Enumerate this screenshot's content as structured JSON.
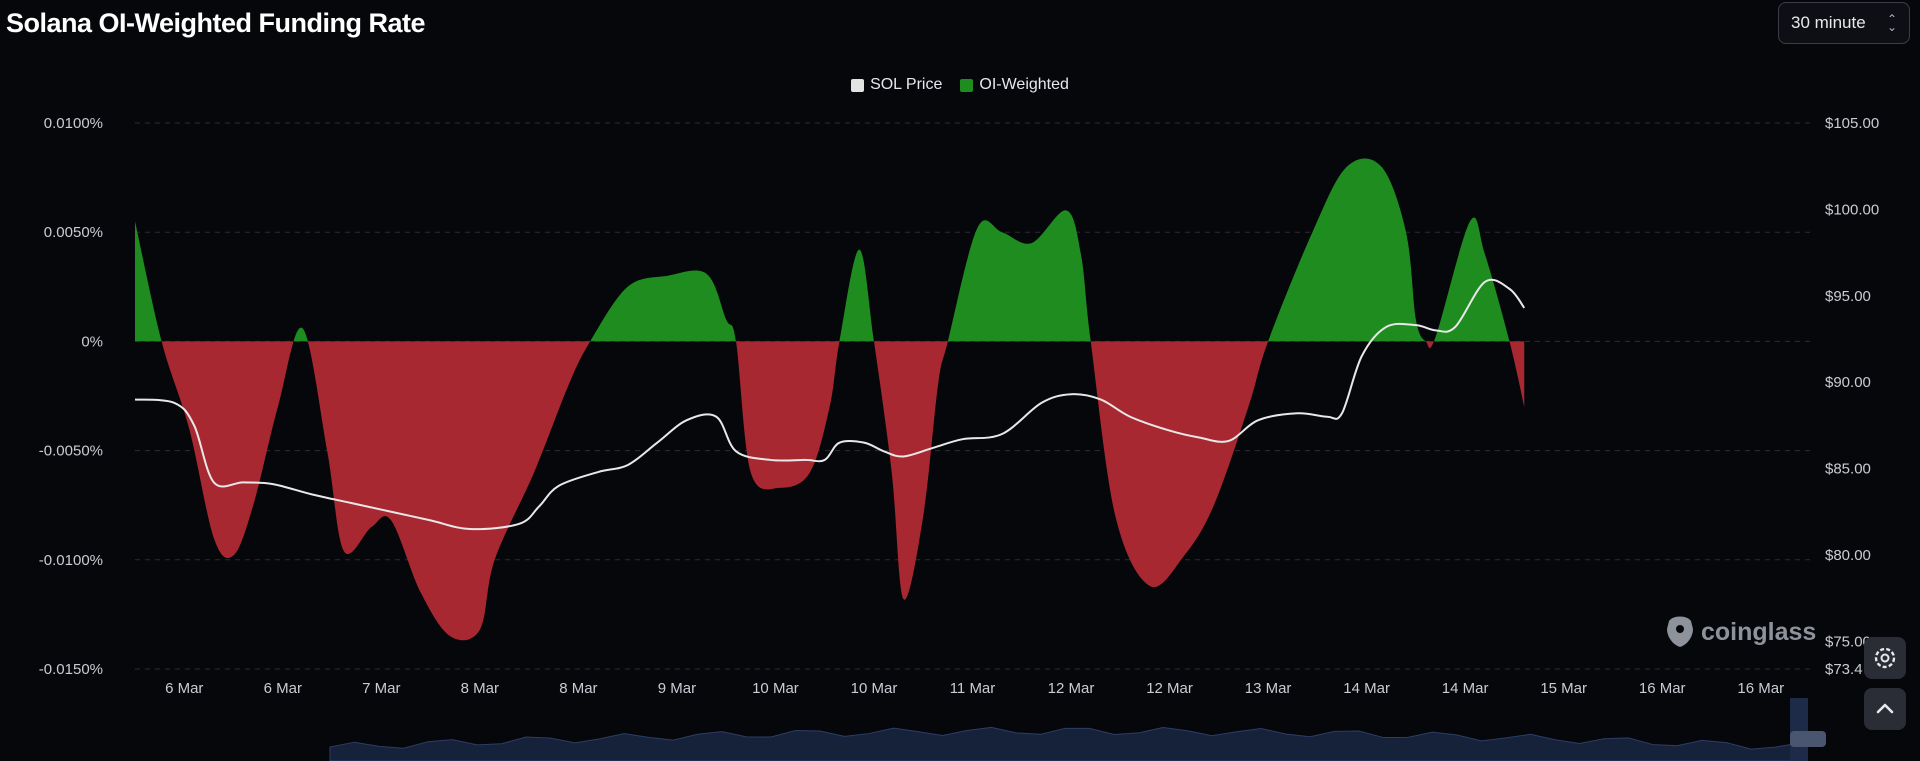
{
  "header": {
    "title": "Solana OI-Weighted Funding Rate",
    "interval_label": "30 minute"
  },
  "legend": [
    {
      "label": "SOL Price",
      "color": "#e3e3e3"
    },
    {
      "label": "OI-Weighted",
      "color": "#1f8c1f"
    }
  ],
  "watermark": "coinglass",
  "colors": {
    "positive": "#1f8c1f",
    "negative": "#a82832",
    "price_line": "#e8e8e8",
    "grid": "#2a2d35",
    "axis_text": "#c9ccd3"
  },
  "icons": {
    "settings": "gear-icon",
    "scroll_top": "chevron-up-icon"
  },
  "chart_data": {
    "type": "area",
    "title": "Solana OI-Weighted Funding Rate",
    "x_tick_labels": [
      "6 Mar",
      "6 Mar",
      "7 Mar",
      "8 Mar",
      "8 Mar",
      "9 Mar",
      "10 Mar",
      "10 Mar",
      "11 Mar",
      "12 Mar",
      "12 Mar",
      "13 Mar",
      "14 Mar",
      "14 Mar",
      "15 Mar",
      "16 Mar",
      "16 Mar"
    ],
    "y_left": {
      "ticks": [
        "0.0100%",
        "0.0050%",
        "0%",
        "-0.0050%",
        "-0.0100%",
        "-0.0150%"
      ],
      "range_pct": [
        -0.015,
        0.01
      ]
    },
    "y_right": {
      "ticks": [
        "$105.00",
        "$100.00",
        "$95.00",
        "$90.00",
        "$85.00",
        "$80.00",
        "$75.00",
        "$73.4"
      ],
      "range_usd": [
        73.4,
        105
      ]
    },
    "x_range_index": [
      0,
      17
    ],
    "grid": true,
    "legend_position": "top-center",
    "series": [
      {
        "name": "OI-Weighted",
        "unit": "%",
        "points": [
          [
            0.0,
            0.0055
          ],
          [
            0.27,
            0.0
          ],
          [
            0.55,
            -0.004
          ],
          [
            0.8,
            -0.009
          ],
          [
            1.0,
            -0.0098
          ],
          [
            1.2,
            -0.0075
          ],
          [
            1.45,
            -0.003
          ],
          [
            1.7,
            0.0006
          ],
          [
            1.95,
            -0.005
          ],
          [
            2.12,
            -0.0096
          ],
          [
            2.4,
            -0.0085
          ],
          [
            2.6,
            -0.0082
          ],
          [
            2.9,
            -0.0115
          ],
          [
            3.2,
            -0.0135
          ],
          [
            3.5,
            -0.0132
          ],
          [
            3.65,
            -0.01
          ],
          [
            4.05,
            -0.006
          ],
          [
            4.4,
            -0.002
          ],
          [
            4.62,
            0.0
          ],
          [
            5.0,
            0.0025
          ],
          [
            5.4,
            0.003
          ],
          [
            5.8,
            0.0031
          ],
          [
            6.0,
            0.001
          ],
          [
            6.1,
            0.0
          ],
          [
            6.25,
            -0.006
          ],
          [
            6.55,
            -0.0067
          ],
          [
            6.85,
            -0.006
          ],
          [
            7.05,
            -0.003
          ],
          [
            7.15,
            0.0
          ],
          [
            7.35,
            0.0042
          ],
          [
            7.5,
            0.0
          ],
          [
            7.68,
            -0.006
          ],
          [
            7.8,
            -0.0118
          ],
          [
            8.0,
            -0.008
          ],
          [
            8.15,
            -0.002
          ],
          [
            8.25,
            0.0
          ],
          [
            8.55,
            0.0052
          ],
          [
            8.8,
            0.005
          ],
          [
            9.1,
            0.0045
          ],
          [
            9.45,
            0.006
          ],
          [
            9.6,
            0.004
          ],
          [
            9.7,
            0.0
          ],
          [
            9.95,
            -0.008
          ],
          [
            10.3,
            -0.0112
          ],
          [
            10.65,
            -0.0098
          ],
          [
            10.95,
            -0.0075
          ],
          [
            11.3,
            -0.003
          ],
          [
            11.5,
            0.0
          ],
          [
            11.95,
            0.005
          ],
          [
            12.3,
            0.008
          ],
          [
            12.65,
            0.008
          ],
          [
            12.9,
            0.005
          ],
          [
            13.0,
            0.001
          ],
          [
            13.1,
            0.0
          ],
          [
            13.2,
            0.0002
          ],
          [
            13.55,
            0.0055
          ],
          [
            13.7,
            0.004
          ],
          [
            13.95,
            0.0
          ],
          [
            14.1,
            -0.003
          ]
        ]
      },
      {
        "name": "SOL Price",
        "unit": "USD",
        "points": [
          [
            0.0,
            89.0
          ],
          [
            0.4,
            88.8
          ],
          [
            0.6,
            87.5
          ],
          [
            0.8,
            84.2
          ],
          [
            1.1,
            84.2
          ],
          [
            1.4,
            84.1
          ],
          [
            1.8,
            83.5
          ],
          [
            2.2,
            83.0
          ],
          [
            2.6,
            82.5
          ],
          [
            3.0,
            82.0
          ],
          [
            3.4,
            81.5
          ],
          [
            3.9,
            81.8
          ],
          [
            4.1,
            82.8
          ],
          [
            4.3,
            84.0
          ],
          [
            4.7,
            84.8
          ],
          [
            5.0,
            85.2
          ],
          [
            5.3,
            86.5
          ],
          [
            5.6,
            87.8
          ],
          [
            5.9,
            88.0
          ],
          [
            6.1,
            86.0
          ],
          [
            6.45,
            85.5
          ],
          [
            6.8,
            85.5
          ],
          [
            7.0,
            85.5
          ],
          [
            7.15,
            86.5
          ],
          [
            7.4,
            86.5
          ],
          [
            7.6,
            86.0
          ],
          [
            7.8,
            85.7
          ],
          [
            8.1,
            86.2
          ],
          [
            8.4,
            86.7
          ],
          [
            8.8,
            87.0
          ],
          [
            9.2,
            88.8
          ],
          [
            9.5,
            89.3
          ],
          [
            9.8,
            89.0
          ],
          [
            10.1,
            88.0
          ],
          [
            10.5,
            87.2
          ],
          [
            10.8,
            86.8
          ],
          [
            11.1,
            86.6
          ],
          [
            11.4,
            87.8
          ],
          [
            11.8,
            88.2
          ],
          [
            12.1,
            88.0
          ],
          [
            12.25,
            88.2
          ],
          [
            12.45,
            91.5
          ],
          [
            12.7,
            93.2
          ],
          [
            13.0,
            93.3
          ],
          [
            13.2,
            93.0
          ],
          [
            13.4,
            93.2
          ],
          [
            13.7,
            95.8
          ],
          [
            13.95,
            95.4
          ],
          [
            14.1,
            94.3
          ]
        ]
      }
    ]
  }
}
